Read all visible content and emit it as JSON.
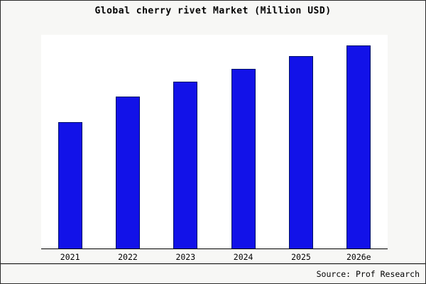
{
  "chart_data": {
    "type": "bar",
    "title": "Global cherry rivet Market (Million USD)",
    "categories": [
      "2021",
      "2022",
      "2023",
      "2024",
      "2025",
      "2026e"
    ],
    "values": [
      62,
      75,
      82,
      88,
      94,
      100
    ],
    "xlabel": "",
    "ylabel": "",
    "ylim": [
      0,
      105
    ],
    "grid": false,
    "legend": "none",
    "bar_fill_color": "#1212e8",
    "bar_border_color": "#001166"
  },
  "footer": {
    "source_label": "Source: Prof Research"
  }
}
